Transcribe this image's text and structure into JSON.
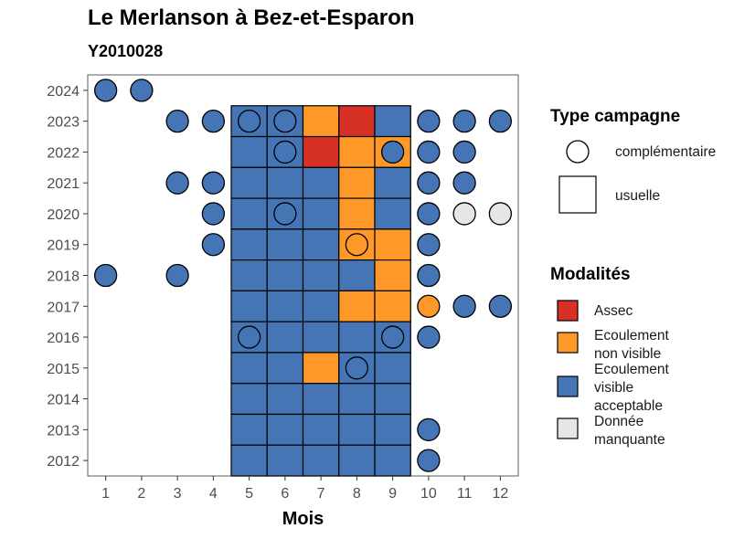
{
  "title": "Le Merlanson à Bez-et-Esparon",
  "subtitle": "Y2010028",
  "chart_data": {
    "type": "heatmap",
    "xlabel": "Mois",
    "ylabel": "",
    "x_ticks": [
      "1",
      "2",
      "3",
      "4",
      "5",
      "6",
      "7",
      "8",
      "9",
      "10",
      "11",
      "12"
    ],
    "y_ticks": [
      "2012",
      "2013",
      "2014",
      "2015",
      "2016",
      "2017",
      "2018",
      "2019",
      "2020",
      "2021",
      "2022",
      "2023",
      "2024"
    ],
    "xlim": [
      0.5,
      12.5
    ],
    "ylim": [
      2011.5,
      2024.5
    ],
    "colors": {
      "Assec": "#d73027",
      "Ecoulement non visible": "#fe9929",
      "Ecoulement visible acceptable": "#4575b4",
      "Donnée manquante": "#e6e6e6"
    },
    "legend_type": {
      "title": "Type campagne",
      "items": [
        {
          "label": "complémentaire",
          "shape": "circle"
        },
        {
          "label": "usuelle",
          "shape": "square"
        }
      ]
    },
    "legend_modalites": {
      "title": "Modalités",
      "items": [
        {
          "key": "Assec",
          "lines": [
            "Assec"
          ]
        },
        {
          "key": "Ecoulement non visible",
          "lines": [
            "Ecoulement",
            "non visible"
          ]
        },
        {
          "key": "Ecoulement visible acceptable",
          "lines": [
            "Ecoulement",
            "visible",
            "acceptable"
          ]
        },
        {
          "key": "Donnée manquante",
          "lines": [
            "Donnée",
            "manquante"
          ]
        }
      ]
    },
    "observations": [
      {
        "year": 2024,
        "month": 1,
        "type": "complémentaire",
        "modalite": "Ecoulement visible acceptable"
      },
      {
        "year": 2024,
        "month": 2,
        "type": "complémentaire",
        "modalite": "Ecoulement visible acceptable"
      },
      {
        "year": 2023,
        "month": 3,
        "type": "complémentaire",
        "modalite": "Ecoulement visible acceptable"
      },
      {
        "year": 2023,
        "month": 4,
        "type": "complémentaire",
        "modalite": "Ecoulement visible acceptable"
      },
      {
        "year": 2023,
        "month": 5,
        "type": "usuelle",
        "modalite": "Ecoulement visible acceptable"
      },
      {
        "year": 2023,
        "month": 5,
        "type": "complémentaire",
        "modalite": "Ecoulement visible acceptable"
      },
      {
        "year": 2023,
        "month": 6,
        "type": "usuelle",
        "modalite": "Ecoulement visible acceptable"
      },
      {
        "year": 2023,
        "month": 6,
        "type": "complémentaire",
        "modalite": "Ecoulement visible acceptable"
      },
      {
        "year": 2023,
        "month": 7,
        "type": "usuelle",
        "modalite": "Ecoulement non visible"
      },
      {
        "year": 2023,
        "month": 8,
        "type": "usuelle",
        "modalite": "Assec"
      },
      {
        "year": 2023,
        "month": 9,
        "type": "usuelle",
        "modalite": "Ecoulement visible acceptable"
      },
      {
        "year": 2023,
        "month": 10,
        "type": "complémentaire",
        "modalite": "Ecoulement visible acceptable"
      },
      {
        "year": 2023,
        "month": 11,
        "type": "complémentaire",
        "modalite": "Ecoulement visible acceptable"
      },
      {
        "year": 2023,
        "month": 12,
        "type": "complémentaire",
        "modalite": "Ecoulement visible acceptable"
      },
      {
        "year": 2022,
        "month": 5,
        "type": "usuelle",
        "modalite": "Ecoulement visible acceptable"
      },
      {
        "year": 2022,
        "month": 6,
        "type": "usuelle",
        "modalite": "Ecoulement visible acceptable"
      },
      {
        "year": 2022,
        "month": 6,
        "type": "complémentaire",
        "modalite": "Ecoulement visible acceptable"
      },
      {
        "year": 2022,
        "month": 7,
        "type": "usuelle",
        "modalite": "Assec"
      },
      {
        "year": 2022,
        "month": 8,
        "type": "usuelle",
        "modalite": "Ecoulement non visible"
      },
      {
        "year": 2022,
        "month": 9,
        "type": "usuelle",
        "modalite": "Ecoulement non visible"
      },
      {
        "year": 2022,
        "month": 9,
        "type": "complémentaire",
        "modalite": "Ecoulement visible acceptable"
      },
      {
        "year": 2022,
        "month": 10,
        "type": "complémentaire",
        "modalite": "Ecoulement visible acceptable"
      },
      {
        "year": 2022,
        "month": 11,
        "type": "complémentaire",
        "modalite": "Ecoulement visible acceptable"
      },
      {
        "year": 2021,
        "month": 3,
        "type": "complémentaire",
        "modalite": "Ecoulement visible acceptable"
      },
      {
        "year": 2021,
        "month": 4,
        "type": "complémentaire",
        "modalite": "Ecoulement visible acceptable"
      },
      {
        "year": 2021,
        "month": 5,
        "type": "usuelle",
        "modalite": "Ecoulement visible acceptable"
      },
      {
        "year": 2021,
        "month": 6,
        "type": "usuelle",
        "modalite": "Ecoulement visible acceptable"
      },
      {
        "year": 2021,
        "month": 7,
        "type": "usuelle",
        "modalite": "Ecoulement visible acceptable"
      },
      {
        "year": 2021,
        "month": 8,
        "type": "usuelle",
        "modalite": "Ecoulement non visible"
      },
      {
        "year": 2021,
        "month": 9,
        "type": "usuelle",
        "modalite": "Ecoulement visible acceptable"
      },
      {
        "year": 2021,
        "month": 10,
        "type": "complémentaire",
        "modalite": "Ecoulement visible acceptable"
      },
      {
        "year": 2021,
        "month": 11,
        "type": "complémentaire",
        "modalite": "Ecoulement visible acceptable"
      },
      {
        "year": 2020,
        "month": 4,
        "type": "complémentaire",
        "modalite": "Ecoulement visible acceptable"
      },
      {
        "year": 2020,
        "month": 5,
        "type": "usuelle",
        "modalite": "Ecoulement visible acceptable"
      },
      {
        "year": 2020,
        "month": 6,
        "type": "usuelle",
        "modalite": "Ecoulement visible acceptable"
      },
      {
        "year": 2020,
        "month": 6,
        "type": "complémentaire",
        "modalite": "Ecoulement visible acceptable"
      },
      {
        "year": 2020,
        "month": 7,
        "type": "usuelle",
        "modalite": "Ecoulement visible acceptable"
      },
      {
        "year": 2020,
        "month": 8,
        "type": "usuelle",
        "modalite": "Ecoulement non visible"
      },
      {
        "year": 2020,
        "month": 9,
        "type": "usuelle",
        "modalite": "Ecoulement visible acceptable"
      },
      {
        "year": 2020,
        "month": 10,
        "type": "complémentaire",
        "modalite": "Ecoulement visible acceptable"
      },
      {
        "year": 2020,
        "month": 11,
        "type": "complémentaire",
        "modalite": "Donnée manquante"
      },
      {
        "year": 2020,
        "month": 12,
        "type": "complémentaire",
        "modalite": "Donnée manquante"
      },
      {
        "year": 2019,
        "month": 4,
        "type": "complémentaire",
        "modalite": "Ecoulement visible acceptable"
      },
      {
        "year": 2019,
        "month": 5,
        "type": "usuelle",
        "modalite": "Ecoulement visible acceptable"
      },
      {
        "year": 2019,
        "month": 6,
        "type": "usuelle",
        "modalite": "Ecoulement visible acceptable"
      },
      {
        "year": 2019,
        "month": 7,
        "type": "usuelle",
        "modalite": "Ecoulement visible acceptable"
      },
      {
        "year": 2019,
        "month": 8,
        "type": "usuelle",
        "modalite": "Ecoulement non visible"
      },
      {
        "year": 2019,
        "month": 8,
        "type": "complémentaire",
        "modalite": "Ecoulement non visible"
      },
      {
        "year": 2019,
        "month": 9,
        "type": "usuelle",
        "modalite": "Ecoulement non visible"
      },
      {
        "year": 2019,
        "month": 10,
        "type": "complémentaire",
        "modalite": "Ecoulement visible acceptable"
      },
      {
        "year": 2018,
        "month": 1,
        "type": "complémentaire",
        "modalite": "Ecoulement visible acceptable"
      },
      {
        "year": 2018,
        "month": 3,
        "type": "complémentaire",
        "modalite": "Ecoulement visible acceptable"
      },
      {
        "year": 2018,
        "month": 5,
        "type": "usuelle",
        "modalite": "Ecoulement visible acceptable"
      },
      {
        "year": 2018,
        "month": 6,
        "type": "usuelle",
        "modalite": "Ecoulement visible acceptable"
      },
      {
        "year": 2018,
        "month": 7,
        "type": "usuelle",
        "modalite": "Ecoulement visible acceptable"
      },
      {
        "year": 2018,
        "month": 8,
        "type": "usuelle",
        "modalite": "Ecoulement visible acceptable"
      },
      {
        "year": 2018,
        "month": 9,
        "type": "usuelle",
        "modalite": "Ecoulement non visible"
      },
      {
        "year": 2018,
        "month": 10,
        "type": "complémentaire",
        "modalite": "Ecoulement visible acceptable"
      },
      {
        "year": 2017,
        "month": 5,
        "type": "usuelle",
        "modalite": "Ecoulement visible acceptable"
      },
      {
        "year": 2017,
        "month": 6,
        "type": "usuelle",
        "modalite": "Ecoulement visible acceptable"
      },
      {
        "year": 2017,
        "month": 7,
        "type": "usuelle",
        "modalite": "Ecoulement visible acceptable"
      },
      {
        "year": 2017,
        "month": 8,
        "type": "usuelle",
        "modalite": "Ecoulement non visible"
      },
      {
        "year": 2017,
        "month": 9,
        "type": "usuelle",
        "modalite": "Ecoulement non visible"
      },
      {
        "year": 2017,
        "month": 10,
        "type": "complémentaire",
        "modalite": "Ecoulement non visible"
      },
      {
        "year": 2017,
        "month": 11,
        "type": "complémentaire",
        "modalite": "Ecoulement visible acceptable"
      },
      {
        "year": 2017,
        "month": 12,
        "type": "complémentaire",
        "modalite": "Ecoulement visible acceptable"
      },
      {
        "year": 2016,
        "month": 5,
        "type": "usuelle",
        "modalite": "Ecoulement visible acceptable"
      },
      {
        "year": 2016,
        "month": 5,
        "type": "complémentaire",
        "modalite": "Ecoulement visible acceptable"
      },
      {
        "year": 2016,
        "month": 6,
        "type": "usuelle",
        "modalite": "Ecoulement visible acceptable"
      },
      {
        "year": 2016,
        "month": 7,
        "type": "usuelle",
        "modalite": "Ecoulement visible acceptable"
      },
      {
        "year": 2016,
        "month": 8,
        "type": "usuelle",
        "modalite": "Ecoulement visible acceptable"
      },
      {
        "year": 2016,
        "month": 9,
        "type": "usuelle",
        "modalite": "Ecoulement visible acceptable"
      },
      {
        "year": 2016,
        "month": 9,
        "type": "complémentaire",
        "modalite": "Ecoulement visible acceptable"
      },
      {
        "year": 2016,
        "month": 10,
        "type": "complémentaire",
        "modalite": "Ecoulement visible acceptable"
      },
      {
        "year": 2015,
        "month": 5,
        "type": "usuelle",
        "modalite": "Ecoulement visible acceptable"
      },
      {
        "year": 2015,
        "month": 6,
        "type": "usuelle",
        "modalite": "Ecoulement visible acceptable"
      },
      {
        "year": 2015,
        "month": 7,
        "type": "usuelle",
        "modalite": "Ecoulement non visible"
      },
      {
        "year": 2015,
        "month": 8,
        "type": "usuelle",
        "modalite": "Ecoulement visible acceptable"
      },
      {
        "year": 2015,
        "month": 8,
        "type": "complémentaire",
        "modalite": "Ecoulement visible acceptable"
      },
      {
        "year": 2015,
        "month": 9,
        "type": "usuelle",
        "modalite": "Ecoulement visible acceptable"
      },
      {
        "year": 2014,
        "month": 5,
        "type": "usuelle",
        "modalite": "Ecoulement visible acceptable"
      },
      {
        "year": 2014,
        "month": 6,
        "type": "usuelle",
        "modalite": "Ecoulement visible acceptable"
      },
      {
        "year": 2014,
        "month": 7,
        "type": "usuelle",
        "modalite": "Ecoulement visible acceptable"
      },
      {
        "year": 2014,
        "month": 8,
        "type": "usuelle",
        "modalite": "Ecoulement visible acceptable"
      },
      {
        "year": 2014,
        "month": 9,
        "type": "usuelle",
        "modalite": "Ecoulement visible acceptable"
      },
      {
        "year": 2013,
        "month": 5,
        "type": "usuelle",
        "modalite": "Ecoulement visible acceptable"
      },
      {
        "year": 2013,
        "month": 6,
        "type": "usuelle",
        "modalite": "Ecoulement visible acceptable"
      },
      {
        "year": 2013,
        "month": 7,
        "type": "usuelle",
        "modalite": "Ecoulement visible acceptable"
      },
      {
        "year": 2013,
        "month": 8,
        "type": "usuelle",
        "modalite": "Ecoulement visible acceptable"
      },
      {
        "year": 2013,
        "month": 9,
        "type": "usuelle",
        "modalite": "Ecoulement visible acceptable"
      },
      {
        "year": 2013,
        "month": 10,
        "type": "complémentaire",
        "modalite": "Ecoulement visible acceptable"
      },
      {
        "year": 2012,
        "month": 5,
        "type": "usuelle",
        "modalite": "Ecoulement visible acceptable"
      },
      {
        "year": 2012,
        "month": 6,
        "type": "usuelle",
        "modalite": "Ecoulement visible acceptable"
      },
      {
        "year": 2012,
        "month": 7,
        "type": "usuelle",
        "modalite": "Ecoulement visible acceptable"
      },
      {
        "year": 2012,
        "month": 8,
        "type": "usuelle",
        "modalite": "Ecoulement visible acceptable"
      },
      {
        "year": 2012,
        "month": 9,
        "type": "usuelle",
        "modalite": "Ecoulement visible acceptable"
      },
      {
        "year": 2012,
        "month": 10,
        "type": "complémentaire",
        "modalite": "Ecoulement visible acceptable"
      }
    ]
  }
}
